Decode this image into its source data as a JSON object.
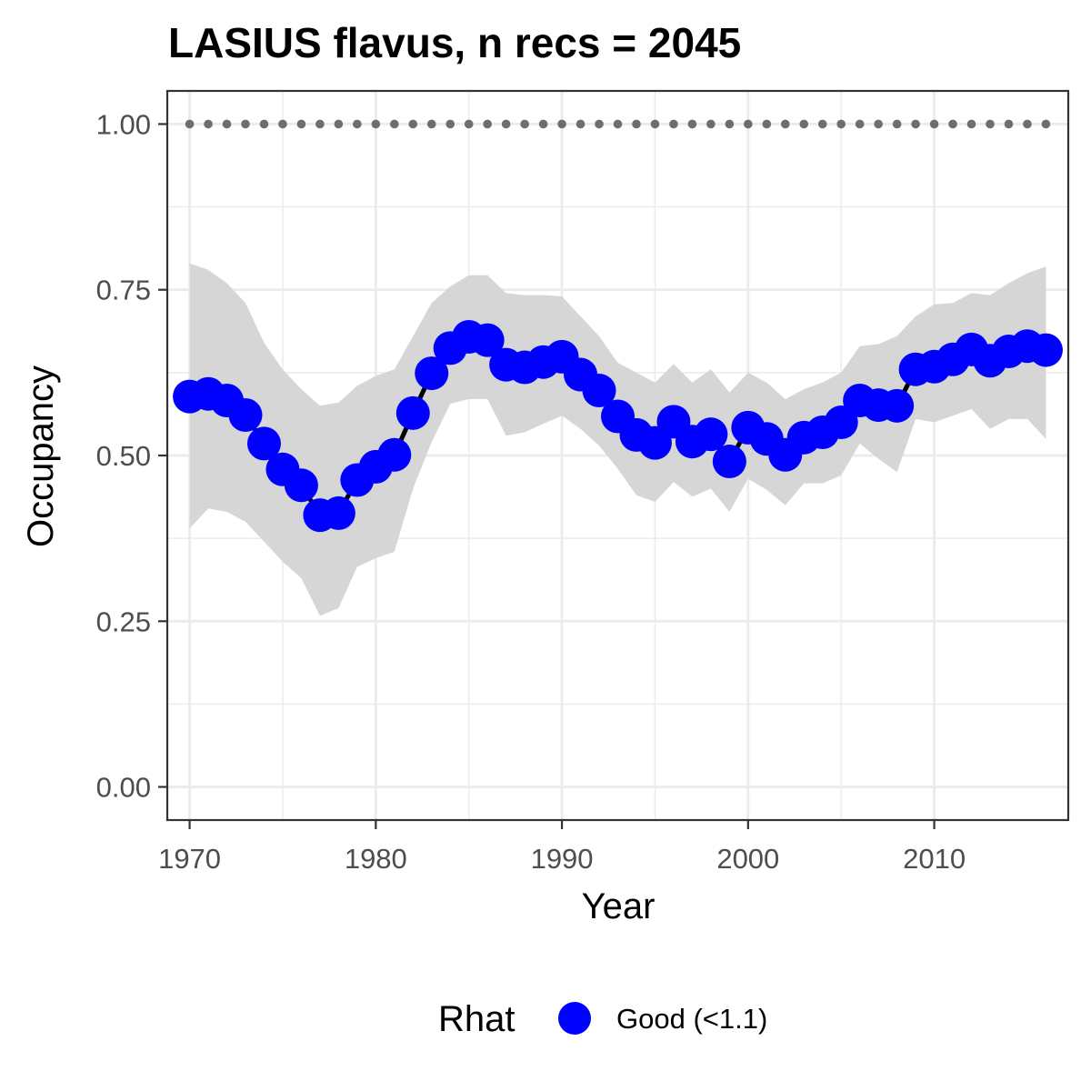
{
  "chart_data": {
    "type": "line",
    "title": "LASIUS flavus, n recs = 2045",
    "xlabel": "Year",
    "ylabel": "Occupancy",
    "xlim": [
      1968.8,
      2017.2
    ],
    "ylim": [
      -0.05,
      1.05
    ],
    "x_ticks": [
      1970,
      1980,
      1990,
      2000,
      2010
    ],
    "x_tick_labels": [
      "1970",
      "1980",
      "1990",
      "2000",
      "2010"
    ],
    "y_ticks": [
      0,
      0.25,
      0.5,
      0.75,
      1.0
    ],
    "y_tick_labels": [
      "0.00",
      "0.25",
      "0.50",
      "0.75",
      "1.00"
    ],
    "grid": true,
    "legend": {
      "title": "Rhat",
      "position": "bottom",
      "entries": [
        {
          "label": "Good (<1.1)",
          "color": "#0000ff"
        }
      ]
    },
    "colors": {
      "points": "#0000ff",
      "line": "#000000",
      "ribbon": "#d6d6d6",
      "dotted_line": "#6e6e6e",
      "panel_border": "#333333",
      "grid": "#ebebeb"
    },
    "x": [
      1970,
      1971,
      1972,
      1973,
      1974,
      1975,
      1976,
      1977,
      1978,
      1979,
      1980,
      1981,
      1982,
      1983,
      1984,
      1985,
      1986,
      1987,
      1988,
      1989,
      1990,
      1991,
      1992,
      1993,
      1994,
      1995,
      1996,
      1997,
      1998,
      1999,
      2000,
      2001,
      2002,
      2003,
      2004,
      2005,
      2006,
      2007,
      2008,
      2009,
      2010,
      2011,
      2012,
      2013,
      2014,
      2015,
      2016
    ],
    "series": [
      {
        "values": [
          0.589,
          0.593,
          0.583,
          0.561,
          0.518,
          0.479,
          0.455,
          0.41,
          0.413,
          0.463,
          0.483,
          0.501,
          0.564,
          0.624,
          0.662,
          0.679,
          0.674,
          0.637,
          0.633,
          0.641,
          0.649,
          0.622,
          0.598,
          0.559,
          0.531,
          0.519,
          0.551,
          0.521,
          0.532,
          0.491,
          0.542,
          0.525,
          0.501,
          0.527,
          0.535,
          0.55,
          0.583,
          0.576,
          0.575,
          0.63,
          0.634,
          0.645,
          0.66,
          0.643,
          0.657,
          0.665,
          0.659
        ]
      }
    ],
    "ribbon_upper": [
      0.79,
      0.78,
      0.76,
      0.73,
      0.67,
      0.63,
      0.6,
      0.575,
      0.58,
      0.605,
      0.62,
      0.63,
      0.68,
      0.73,
      0.755,
      0.772,
      0.772,
      0.745,
      0.742,
      0.742,
      0.74,
      0.71,
      0.68,
      0.64,
      0.625,
      0.61,
      0.638,
      0.61,
      0.63,
      0.595,
      0.625,
      0.61,
      0.585,
      0.6,
      0.61,
      0.625,
      0.665,
      0.668,
      0.68,
      0.71,
      0.728,
      0.73,
      0.745,
      0.742,
      0.76,
      0.775,
      0.785
    ],
    "ribbon_lower": [
      0.39,
      0.42,
      0.415,
      0.4,
      0.37,
      0.34,
      0.315,
      0.258,
      0.27,
      0.332,
      0.345,
      0.355,
      0.45,
      0.52,
      0.578,
      0.585,
      0.585,
      0.53,
      0.535,
      0.548,
      0.56,
      0.54,
      0.515,
      0.48,
      0.44,
      0.43,
      0.46,
      0.438,
      0.45,
      0.415,
      0.465,
      0.448,
      0.425,
      0.458,
      0.458,
      0.47,
      0.518,
      0.495,
      0.475,
      0.555,
      0.55,
      0.56,
      0.57,
      0.54,
      0.555,
      0.555,
      0.525
    ],
    "reference_line": {
      "y": 1.0,
      "style": "dotted"
    }
  }
}
